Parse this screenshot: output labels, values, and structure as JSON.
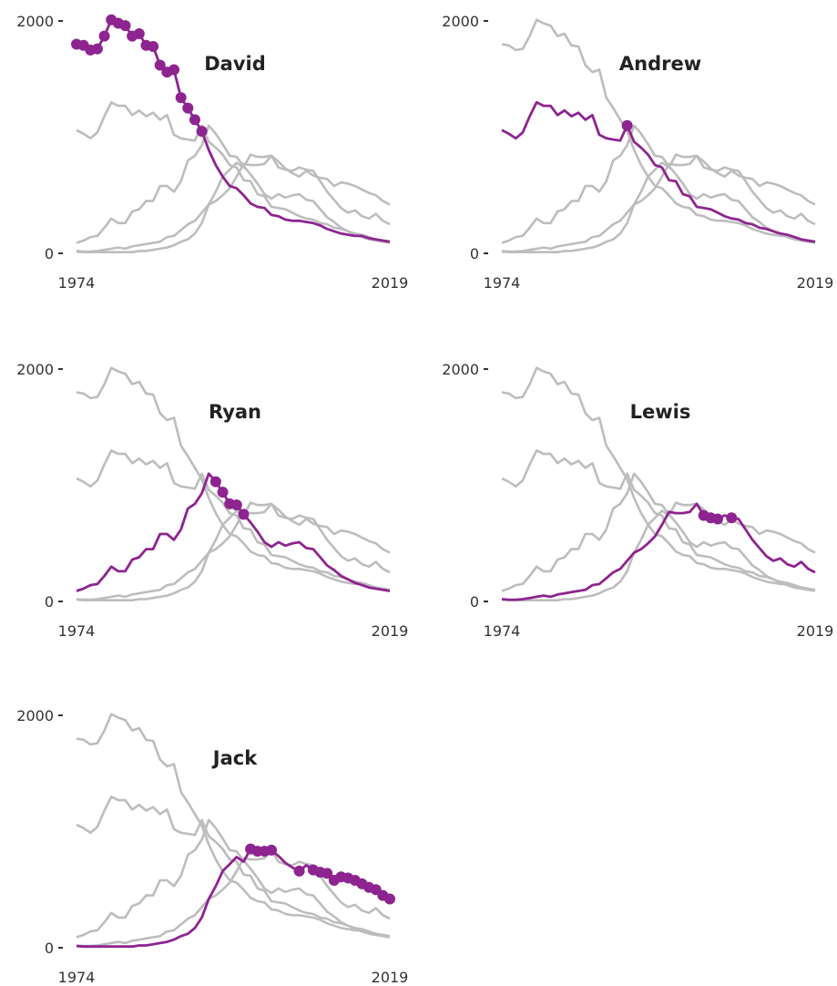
{
  "chart_data": {
    "type": "line",
    "layout": "small-multiples",
    "highlight_color": "#8e2490",
    "context_color": "#bdbdbd",
    "x": [
      1974,
      1975,
      1976,
      1977,
      1978,
      1979,
      1980,
      1981,
      1982,
      1983,
      1984,
      1985,
      1986,
      1987,
      1988,
      1989,
      1990,
      1991,
      1992,
      1993,
      1994,
      1995,
      1996,
      1997,
      1998,
      1999,
      2000,
      2001,
      2002,
      2003,
      2004,
      2005,
      2006,
      2007,
      2008,
      2009,
      2010,
      2011,
      2012,
      2013,
      2014,
      2015,
      2016,
      2017,
      2018,
      2019
    ],
    "xlim": [
      1974,
      2019
    ],
    "ylim": [
      0,
      2000
    ],
    "x_tick_labels": [
      "1974",
      "2019"
    ],
    "y_tick_labels": [
      "0",
      "2000"
    ],
    "series": [
      {
        "name": "David",
        "values": [
          1800,
          1790,
          1750,
          1760,
          1870,
          2010,
          1980,
          1960,
          1870,
          1890,
          1790,
          1780,
          1620,
          1560,
          1580,
          1340,
          1250,
          1150,
          1050,
          890,
          760,
          660,
          580,
          560,
          500,
          430,
          400,
          390,
          330,
          320,
          290,
          280,
          280,
          270,
          260,
          240,
          210,
          190,
          170,
          160,
          150,
          150,
          130,
          120,
          110,
          100
        ],
        "markers": [
          1974,
          1975,
          1976,
          1977,
          1978,
          1979,
          1980,
          1981,
          1982,
          1983,
          1984,
          1985,
          1986,
          1987,
          1988,
          1989,
          1990,
          1991,
          1992
        ]
      },
      {
        "name": "Andrew",
        "values": [
          1060,
          1030,
          990,
          1040,
          1180,
          1300,
          1270,
          1270,
          1190,
          1230,
          1180,
          1210,
          1150,
          1190,
          1020,
          990,
          980,
          970,
          1100,
          960,
          910,
          850,
          760,
          740,
          630,
          620,
          510,
          490,
          400,
          390,
          380,
          350,
          320,
          300,
          290,
          260,
          250,
          220,
          210,
          190,
          170,
          160,
          140,
          120,
          110,
          100
        ],
        "markers": [
          1992
        ]
      },
      {
        "name": "Ryan",
        "values": [
          90,
          110,
          140,
          150,
          220,
          300,
          260,
          260,
          360,
          380,
          450,
          450,
          580,
          580,
          530,
          620,
          800,
          840,
          930,
          1100,
          1030,
          940,
          840,
          830,
          750,
          680,
          600,
          510,
          470,
          510,
          480,
          500,
          510,
          460,
          450,
          380,
          310,
          270,
          220,
          190,
          160,
          140,
          120,
          110,
          100,
          90
        ],
        "markers": [
          1994,
          1995,
          1996,
          1997,
          1998
        ]
      },
      {
        "name": "Lewis",
        "values": [
          20,
          15,
          15,
          20,
          30,
          40,
          50,
          40,
          60,
          70,
          80,
          90,
          100,
          140,
          150,
          200,
          250,
          280,
          350,
          420,
          450,
          500,
          560,
          660,
          770,
          760,
          760,
          770,
          840,
          740,
          720,
          710,
          740,
          720,
          710,
          620,
          530,
          460,
          390,
          350,
          370,
          320,
          300,
          340,
          280,
          250
        ],
        "markers": [
          2003,
          2004,
          2005,
          2007
        ]
      },
      {
        "name": "Jack",
        "values": [
          15,
          10,
          10,
          10,
          10,
          10,
          10,
          10,
          10,
          20,
          20,
          30,
          40,
          50,
          70,
          100,
          120,
          170,
          260,
          420,
          530,
          660,
          720,
          780,
          740,
          850,
          830,
          830,
          840,
          790,
          730,
          690,
          660,
          710,
          670,
          650,
          640,
          580,
          610,
          600,
          580,
          550,
          520,
          500,
          450,
          420
        ],
        "markers": [
          1999,
          2000,
          2001,
          2002,
          2006,
          2008,
          2009,
          2010,
          2011,
          2012,
          2013,
          2014,
          2015,
          2016,
          2017,
          2018,
          2019
        ]
      }
    ]
  }
}
